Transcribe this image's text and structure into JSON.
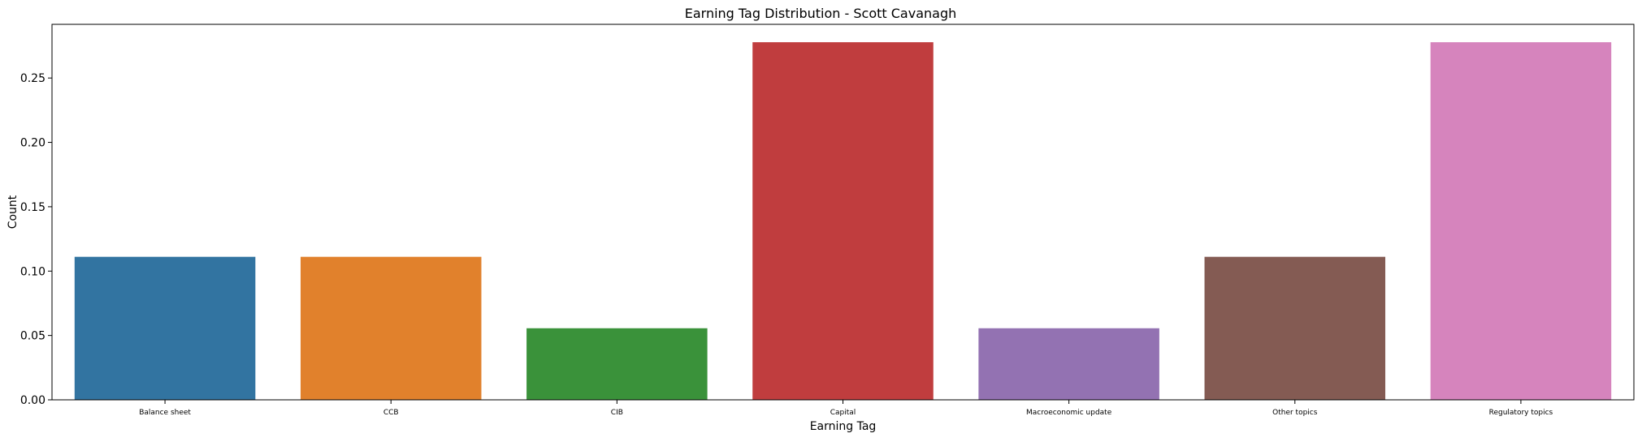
{
  "chart_data": {
    "type": "bar",
    "title": "Earning Tag Distribution - Scott Cavanagh",
    "xlabel": "Earning Tag",
    "ylabel": "Count",
    "categories": [
      "Balance sheet",
      "CCB",
      "CIB",
      "Capital",
      "Macroeconomic update",
      "Other topics",
      "Regulatory topics"
    ],
    "values": [
      0.1111,
      0.1111,
      0.0556,
      0.2778,
      0.0556,
      0.1111,
      0.2778
    ],
    "colors": [
      "#3274a1",
      "#e1812c",
      "#3a923a",
      "#c03d3e",
      "#9372b2",
      "#845b53",
      "#d684bd"
    ],
    "ylim": [
      0,
      0.2917
    ],
    "yticks": [
      0.0,
      0.05,
      0.1,
      0.15,
      0.2,
      0.25
    ],
    "ytick_labels": [
      "0.00",
      "0.05",
      "0.10",
      "0.15",
      "0.20",
      "0.25"
    ],
    "grid": false,
    "legend": "none"
  }
}
